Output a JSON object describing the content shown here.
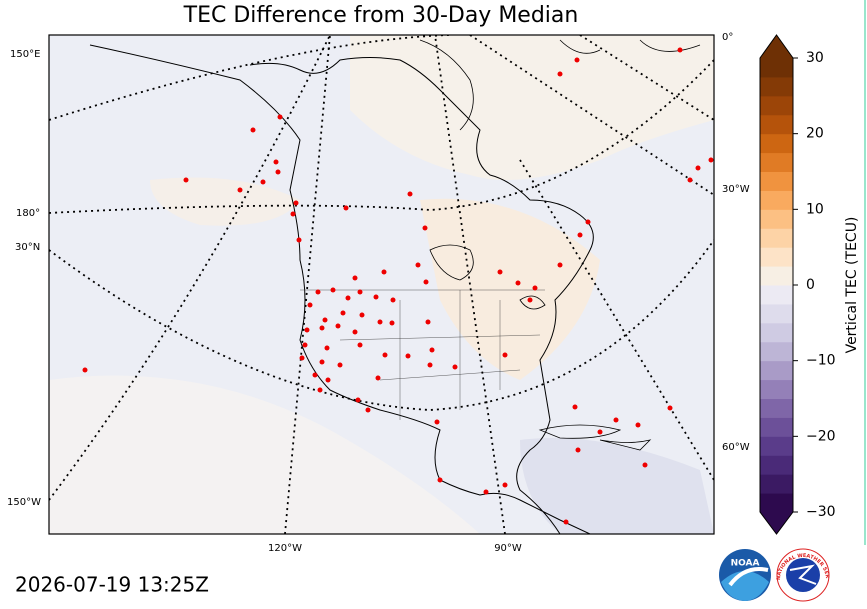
{
  "title": "TEC Difference from 30-Day Median",
  "timestamp": "2026-07-19 13:25Z",
  "graticule_labels": {
    "top_right": "0°",
    "left_top": "150°E",
    "right_upper": "30°W",
    "left_mid": "180°",
    "left_lat": "30°N",
    "right_lower": "60°W",
    "left_bottom": "150°W",
    "bottom_left": "120°W",
    "bottom_right": "90°W"
  },
  "colorbar": {
    "label": "Vertical TEC (TECU)",
    "lim": [
      -30,
      30
    ],
    "ticks": [
      30,
      20,
      10,
      0,
      {
        "value": -10,
        "label": "−10"
      },
      {
        "value": -20,
        "label": "−20"
      },
      {
        "value": -30,
        "label": "−30"
      }
    ]
  },
  "logos": {
    "noaa": "NOAA",
    "nws": "NATIONAL WEATHER SERVICE"
  }
}
